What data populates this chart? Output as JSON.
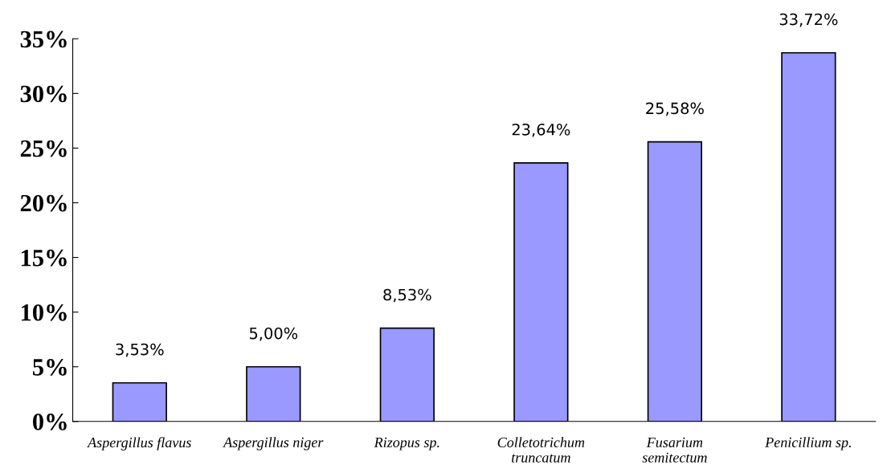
{
  "chart_data": {
    "type": "bar",
    "categories": [
      "Aspergillus flavus",
      "Aspergillus niger",
      "Rizopus sp.",
      "Colletotrichum\ntruncatum",
      "Fusarium\nsemitectum",
      "Penicillium sp."
    ],
    "values": [
      3.53,
      5.0,
      8.53,
      23.64,
      25.58,
      33.72
    ],
    "value_labels": [
      "3,53%",
      "5,00%",
      "8,53%",
      "23,64%",
      "25,58%",
      "33,72%"
    ],
    "color": "#9999ff",
    "ylim": [
      0,
      35
    ],
    "yticks": [
      {
        "value": 0,
        "label": "0%"
      },
      {
        "value": 5,
        "label": "5%"
      },
      {
        "value": 10,
        "label": "10%"
      },
      {
        "value": 15,
        "label": "15%"
      },
      {
        "value": 20,
        "label": "20%"
      },
      {
        "value": 25,
        "label": "25%"
      },
      {
        "value": 30,
        "label": "30%"
      },
      {
        "value": 35,
        "label": "35%"
      }
    ],
    "grid": false,
    "legend": false
  }
}
